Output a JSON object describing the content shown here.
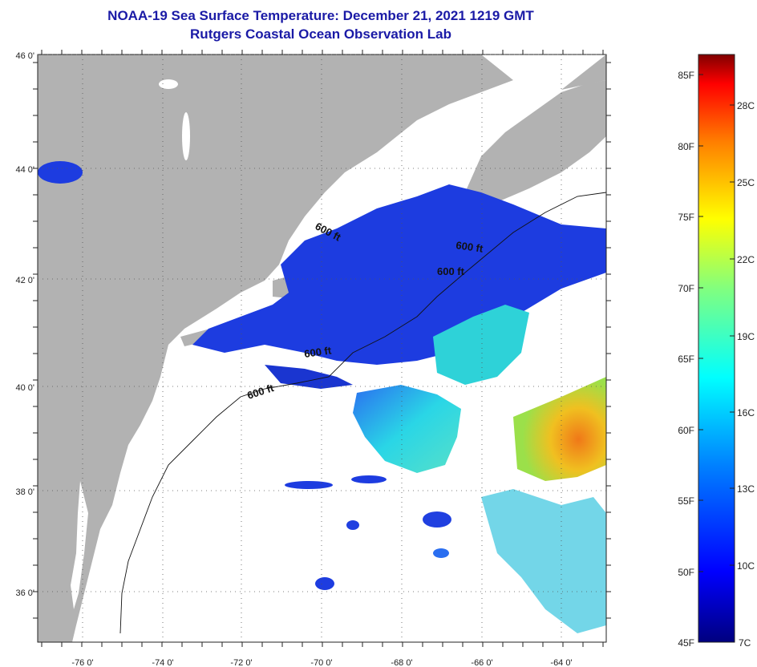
{
  "header": {
    "title": "NOAA-19 Sea Surface Temperature:  December 21, 2021 1219 GMT",
    "subtitle": "Rutgers Coastal Ocean Observation Lab"
  },
  "map": {
    "lon_ticks": [
      "-76 0'",
      "-74 0'",
      "-72 0'",
      "-70 0'",
      "-68 0'",
      "-66 0'",
      "-64 0'"
    ],
    "lat_ticks": [
      "46 0'",
      "44 0'",
      "42 0'",
      "40 0'",
      "38 0'",
      "36 0'"
    ],
    "contour_labels": [
      "600 ft",
      "600 ft",
      "600 ft",
      "600 ft",
      "600 ft"
    ],
    "colors": {
      "land": "#b2b2b2",
      "cloud": "#ffffff",
      "water_cold": "#1d3ce0",
      "water_mid": "#27d3e8",
      "water_warm": "#f2a022"
    }
  },
  "colorbar": {
    "fahrenheit_labels": [
      "85F",
      "80F",
      "75F",
      "70F",
      "65F",
      "60F",
      "55F",
      "50F",
      "45F"
    ],
    "celsius_labels": [
      "28C",
      "25C",
      "22C",
      "19C",
      "16C",
      "13C",
      "10C",
      "7C"
    ]
  }
}
